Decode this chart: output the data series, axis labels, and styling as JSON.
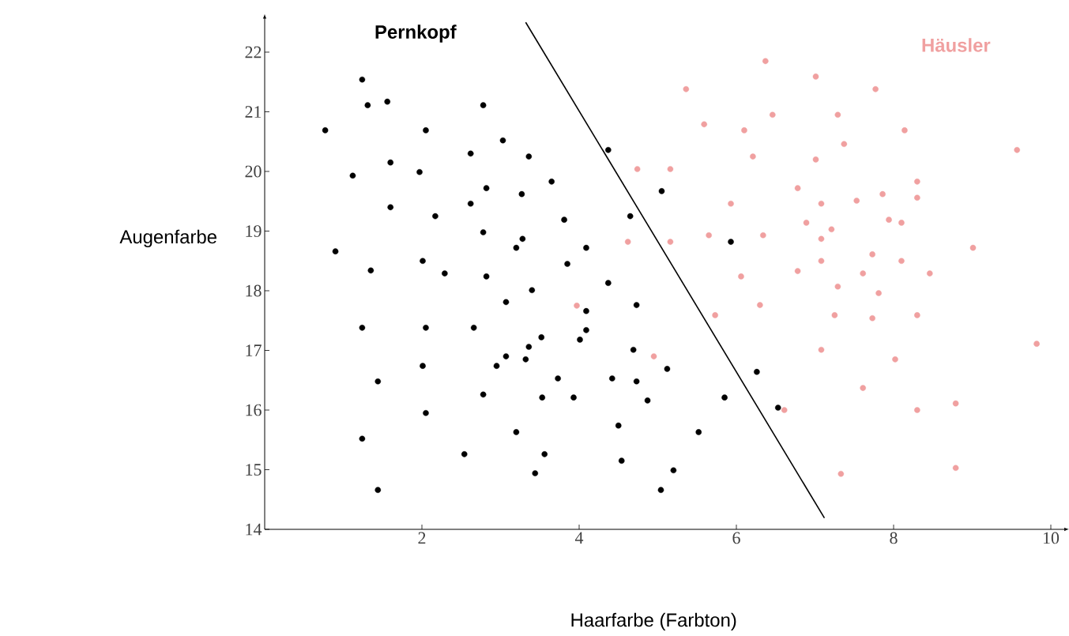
{
  "chart_data": {
    "type": "scatter",
    "xlabel": "Haarfarbe (Farbton)",
    "ylabel": "Augenfarbe",
    "xlim": [
      0,
      10.2
    ],
    "ylim": [
      14,
      22.6
    ],
    "xticks": [
      2,
      4,
      6,
      8,
      10
    ],
    "yticks": [
      14,
      15,
      16,
      17,
      18,
      19,
      20,
      21,
      22
    ],
    "series": [
      {
        "name": "Pernkopf",
        "color": "#000000",
        "x": [
          1.24,
          1.31,
          1.56,
          0.77,
          2.05,
          2.78,
          1.12,
          1.6,
          1.97,
          2.62,
          3.03,
          3.36,
          1.6,
          2.17,
          2.62,
          2.82,
          3.27,
          3.65,
          4.37,
          0.9,
          1.35,
          2.01,
          2.29,
          2.78,
          2.82,
          3.2,
          3.28,
          3.81,
          3.85,
          4.09,
          3.07,
          3.4,
          4.37,
          4.65,
          5.05,
          5.93,
          4.73,
          4.09,
          4.09,
          4.01,
          1.24,
          2.05,
          2.66,
          3.52,
          3.36,
          3.07,
          2.95,
          3.32,
          2.01,
          1.44,
          2.78,
          3.73,
          4.42,
          4.73,
          4.69,
          5.12,
          4.87,
          3.93,
          3.53,
          2.05,
          5.85,
          6.26,
          6.53,
          1.24,
          3.2,
          4.5,
          5.52,
          2.54,
          3.56,
          4.54,
          5.2,
          3.44,
          5.04,
          1.44
        ],
        "values": [
          21.54,
          21.11,
          21.17,
          20.69,
          20.69,
          21.11,
          19.93,
          20.15,
          19.99,
          20.3,
          20.52,
          20.25,
          19.4,
          19.25,
          19.46,
          19.72,
          19.62,
          19.83,
          20.36,
          18.66,
          18.34,
          18.5,
          18.29,
          18.98,
          18.24,
          18.72,
          18.87,
          19.19,
          18.45,
          18.72,
          17.81,
          18.01,
          18.13,
          19.25,
          19.67,
          18.82,
          17.76,
          17.66,
          17.34,
          17.18,
          17.38,
          17.38,
          17.38,
          17.22,
          17.06,
          16.9,
          16.74,
          16.85,
          16.74,
          16.48,
          16.26,
          16.53,
          16.53,
          16.48,
          17.01,
          16.69,
          16.16,
          16.21,
          16.21,
          15.95,
          16.21,
          16.64,
          16.04,
          15.52,
          15.63,
          15.74,
          15.63,
          15.26,
          15.26,
          15.15,
          14.99,
          14.94,
          14.66,
          14.66
        ]
      },
      {
        "name": "Häusler",
        "color": "#f0a0a0",
        "x": [
          6.37,
          5.36,
          7.01,
          7.77,
          5.59,
          6.1,
          6.46,
          7.29,
          8.14,
          7.37,
          6.21,
          7.01,
          4.74,
          5.16,
          9.57,
          6.78,
          8.3,
          8.3,
          7.86,
          7.53,
          5.93,
          7.08,
          7.94,
          8.1,
          6.89,
          7.21,
          7.08,
          5.65,
          6.34,
          4.62,
          5.16,
          9.01,
          7.73,
          7.08,
          8.1,
          6.78,
          7.61,
          8.46,
          6.06,
          7.29,
          7.81,
          6.3,
          3.97,
          5.73,
          7.25,
          7.73,
          8.3,
          9.82,
          7.08,
          4.95,
          8.02,
          7.61,
          6.61,
          8.3,
          8.79,
          7.33,
          8.79
        ],
        "values": [
          21.85,
          21.38,
          21.59,
          21.38,
          20.79,
          20.69,
          20.95,
          20.95,
          20.69,
          20.46,
          20.25,
          20.2,
          20.04,
          20.04,
          20.36,
          19.72,
          19.83,
          19.56,
          19.62,
          19.51,
          19.46,
          19.46,
          19.19,
          19.14,
          19.14,
          19.03,
          18.87,
          18.93,
          18.93,
          18.82,
          18.82,
          18.72,
          18.61,
          18.5,
          18.5,
          18.33,
          18.29,
          18.29,
          18.24,
          18.07,
          17.96,
          17.76,
          17.75,
          17.59,
          17.59,
          17.54,
          17.59,
          17.11,
          17.01,
          16.9,
          16.85,
          16.37,
          16.0,
          16.0,
          16.11,
          14.93,
          15.03
        ]
      },
      {
        "type": "line",
        "color": "#000000",
        "x": [
          3.32,
          7.12
        ],
        "values": [
          22.5,
          14.19
        ]
      }
    ]
  }
}
